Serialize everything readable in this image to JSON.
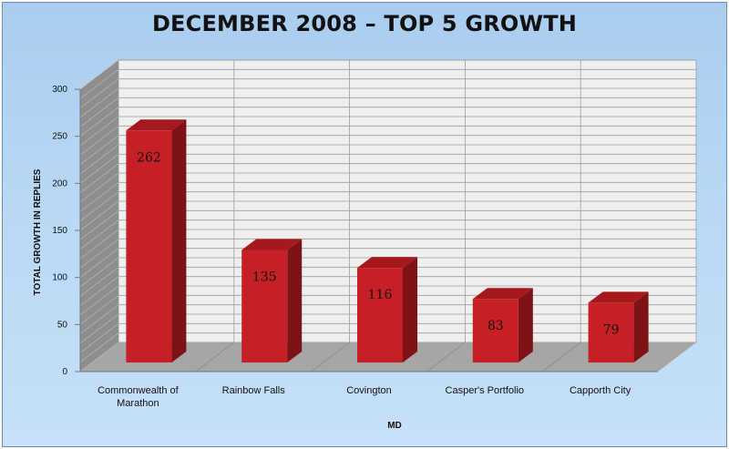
{
  "chart_data": {
    "type": "bar",
    "title": "DECEMBER 2008 – TOP 5 GROWTH",
    "xlabel": "MD",
    "ylabel": "TOTAL GROWTH IN REPLIES",
    "categories": [
      [
        "Commonwealth of",
        "Marathon"
      ],
      [
        "Rainbow Falls"
      ],
      [
        "Covington"
      ],
      [
        "Casper's Portfolio"
      ],
      [
        "Capporth City"
      ]
    ],
    "values": [
      262,
      135,
      116,
      83,
      79
    ],
    "data_labels": [
      "262",
      "135",
      "116",
      "83",
      "79"
    ],
    "ylim": [
      0,
      300
    ],
    "y_ticks": [
      "0",
      "50",
      "100",
      "150",
      "200",
      "250",
      "300"
    ],
    "grid": true,
    "legend": "none",
    "colors": {
      "bar_front": "#c42026",
      "bar_side": "#7e1214",
      "bar_top": "#a5181c",
      "wall": "#f0eeee",
      "side_wall": "#8e8e8e",
      "floor": "#a6a6a6",
      "grid": "#9e9e9e"
    }
  }
}
